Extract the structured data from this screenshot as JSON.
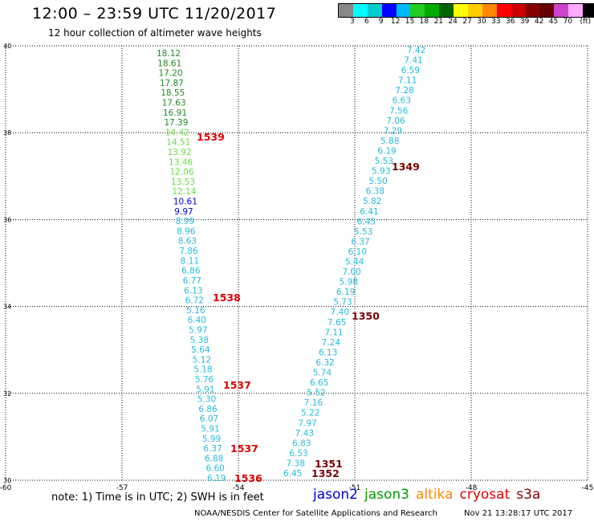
{
  "header": {
    "title": "12:00 – 23:59 UTC 11/20/2017",
    "subtitle": "12 hour collection of altimeter wave heights"
  },
  "colorbar": {
    "colors": [
      "#888888",
      "#00ffff",
      "#00cccc",
      "#0000ff",
      "#00bbff",
      "#22cc22",
      "#00aa00",
      "#006600",
      "#ffff00",
      "#ffcc00",
      "#ff8800",
      "#ff0000",
      "#cc0000",
      "#880000",
      "#660000",
      "#cc44cc",
      "#ffaaff",
      "#000000"
    ],
    "labels": [
      "3",
      "6",
      "9",
      "12",
      "15",
      "18",
      "21",
      "24",
      "27",
      "30",
      "33",
      "36",
      "39",
      "42",
      "45",
      "70",
      "(ft)"
    ]
  },
  "map": {
    "lon_range": [
      -60,
      -45
    ],
    "lat_range": [
      30,
      40
    ],
    "lon_ticks": [
      "-60",
      "-57",
      "-54",
      "-51",
      "-48",
      "-45"
    ],
    "lat_ticks": [
      "30",
      "32",
      "34",
      "36",
      "38",
      "40"
    ],
    "grid": "dotted",
    "track_west": {
      "color_key": {
        "green_dark": "#228822",
        "green_light": "#66dd44",
        "blue": "#0000cc",
        "cyan": "#22bbdd"
      },
      "points": [
        {
          "v": "18.12",
          "c": "green_dark"
        },
        {
          "v": "18.61",
          "c": "green_dark"
        },
        {
          "v": "17.20",
          "c": "green_dark"
        },
        {
          "v": "17.87",
          "c": "green_dark"
        },
        {
          "v": "18.55",
          "c": "green_dark"
        },
        {
          "v": "17.63",
          "c": "green_dark"
        },
        {
          "v": "16.91",
          "c": "green_dark"
        },
        {
          "v": "17.39",
          "c": "green_dark"
        },
        {
          "v": "14.42",
          "c": "green_light"
        },
        {
          "v": "14.51",
          "c": "green_light"
        },
        {
          "v": "13.92",
          "c": "green_light"
        },
        {
          "v": "13.46",
          "c": "green_light"
        },
        {
          "v": "12.06",
          "c": "green_light"
        },
        {
          "v": "13.53",
          "c": "green_light"
        },
        {
          "v": "12.14",
          "c": "green_light"
        },
        {
          "v": "10.61",
          "c": "blue"
        },
        {
          "v": "9.97",
          "c": "blue"
        },
        {
          "v": "8.99",
          "c": "cyan"
        },
        {
          "v": "8.96",
          "c": "cyan"
        },
        {
          "v": "8.63",
          "c": "cyan"
        },
        {
          "v": "7.86",
          "c": "cyan"
        },
        {
          "v": "8.11",
          "c": "cyan"
        },
        {
          "v": "6.86",
          "c": "cyan"
        },
        {
          "v": "6.77",
          "c": "cyan"
        },
        {
          "v": "6.13",
          "c": "cyan"
        },
        {
          "v": "6.72",
          "c": "cyan"
        },
        {
          "v": "5.16",
          "c": "cyan"
        },
        {
          "v": "6.40",
          "c": "cyan"
        },
        {
          "v": "5.97",
          "c": "cyan"
        },
        {
          "v": "5.38",
          "c": "cyan"
        },
        {
          "v": "5.64",
          "c": "cyan"
        },
        {
          "v": "5.12",
          "c": "cyan"
        },
        {
          "v": "5.18",
          "c": "cyan"
        },
        {
          "v": "5.76",
          "c": "cyan"
        },
        {
          "v": "5.91",
          "c": "cyan"
        },
        {
          "v": "5.30",
          "c": "cyan"
        },
        {
          "v": "6.86",
          "c": "cyan"
        },
        {
          "v": "6.07",
          "c": "cyan"
        },
        {
          "v": "5.91",
          "c": "cyan"
        },
        {
          "v": "5.99",
          "c": "cyan"
        },
        {
          "v": "6.37",
          "c": "cyan"
        },
        {
          "v": "6.88",
          "c": "cyan"
        },
        {
          "v": "6.60",
          "c": "cyan"
        },
        {
          "v": "6.19",
          "c": "cyan"
        }
      ],
      "time_labels": [
        "1539",
        "1538",
        "1537",
        "1537",
        "1536"
      ]
    },
    "track_east": {
      "points": [
        "7.42",
        "7.41",
        "6.59",
        "7.11",
        "7.28",
        "6.63",
        "7.56",
        "7.06",
        "7.29",
        "5.88",
        "6.19",
        "5.53",
        "5.93",
        "5.50",
        "6.38",
        "5.82",
        "6.41",
        "6.45",
        "5.53",
        "6.37",
        "6.10",
        "5.44",
        "7.00",
        "5.98",
        "6.19",
        "5.73",
        "7.40",
        "7.65",
        "7.11",
        "7.24",
        "6.13",
        "6.32",
        "5.74",
        "6.65",
        "5.52",
        "7.16",
        "5.22",
        "7.97",
        "7.43",
        "6.83",
        "6.53",
        "7.38",
        "6.45"
      ],
      "time_labels": [
        "1349",
        "1350",
        "1351",
        "1352"
      ]
    }
  },
  "footer": {
    "note": "note:  1) Time is in UTC;  2) SWH is in feet",
    "legend": [
      {
        "name": "jason2",
        "color": "#0000cc"
      },
      {
        "name": "jason3",
        "color": "#009900"
      },
      {
        "name": "altika",
        "color": "#ff8800"
      },
      {
        "name": "cryosat",
        "color": "#dd0000"
      },
      {
        "name": "s3a",
        "color": "#880000"
      }
    ],
    "credit": "NOAA/NESDIS Center for Satellite Applications and Research",
    "timestamp": "Nov 21 13:28:17 UTC 2017"
  }
}
